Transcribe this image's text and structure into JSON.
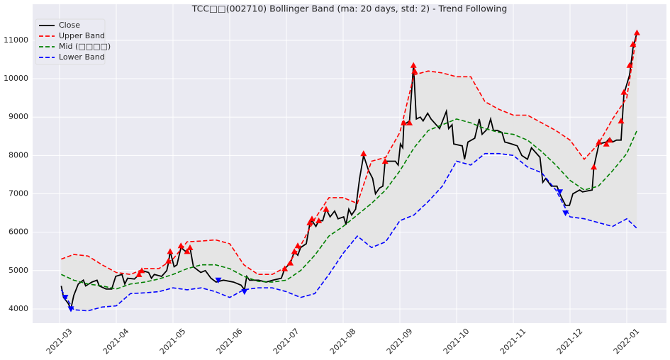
{
  "chart_data": {
    "type": "line",
    "title": "TCC□□(002710) Bollinger Band (ma: 20 days, std: 2) - Trend Following",
    "xlim": [
      -0.475,
      10.7
    ],
    "ylim": [
      3630,
      11940
    ],
    "xticks": [
      {
        "value": 0,
        "label": "2021-03"
      },
      {
        "value": 1,
        "label": "2021-04"
      },
      {
        "value": 2,
        "label": "2021-05"
      },
      {
        "value": 3,
        "label": "2021-06"
      },
      {
        "value": 4,
        "label": "2021-07"
      },
      {
        "value": 5,
        "label": "2021-08"
      },
      {
        "value": 6,
        "label": "2021-09"
      },
      {
        "value": 7,
        "label": "2021-10"
      },
      {
        "value": 8,
        "label": "2021-11"
      },
      {
        "value": 9,
        "label": "2021-12"
      },
      {
        "value": 10,
        "label": "2022-01"
      }
    ],
    "yticks": [
      4000,
      5000,
      6000,
      7000,
      8000,
      9000,
      10000,
      11000
    ],
    "grid": true,
    "legend": "upper left",
    "band_fill": "#e5e5e5",
    "series": [
      {
        "name": "Close",
        "color": "#000000",
        "dash": false,
        "x": [
          0.03,
          0.07,
          0.15,
          0.2,
          0.25,
          0.33,
          0.42,
          0.46,
          0.57,
          0.66,
          0.7,
          0.82,
          0.92,
          0.99,
          1.1,
          1.15,
          1.2,
          1.32,
          1.4,
          1.45,
          1.57,
          1.62,
          1.67,
          1.8,
          1.89,
          1.92,
          1.95,
          2.02,
          2.07,
          2.14,
          2.22,
          2.3,
          2.36,
          2.49,
          2.57,
          2.67,
          2.76,
          2.89,
          3.07,
          3.2,
          3.26,
          3.3,
          3.35,
          3.51,
          3.64,
          3.76,
          3.91,
          3.97,
          4.07,
          4.14,
          4.2,
          4.25,
          4.35,
          4.41,
          4.45,
          4.52,
          4.57,
          4.64,
          4.7,
          4.77,
          4.85,
          4.91,
          5.01,
          5.05,
          5.1,
          5.15,
          5.22,
          5.29,
          5.36,
          5.45,
          5.52,
          5.57,
          5.64,
          5.7,
          5.74,
          5.82,
          5.92,
          5.97,
          6.01,
          6.05,
          6.07,
          6.17,
          6.24,
          6.29,
          6.36,
          6.41,
          6.49,
          6.55,
          6.7,
          6.82,
          6.86,
          6.92,
          6.95,
          7.1,
          7.14,
          7.2,
          7.32,
          7.4,
          7.45,
          7.55,
          7.6,
          7.65,
          7.72,
          7.8,
          7.85,
          7.97,
          8.07,
          8.15,
          8.25,
          8.32,
          8.47,
          8.52,
          8.57,
          8.67,
          8.77,
          8.82,
          8.92,
          8.99,
          9.05,
          9.17,
          9.22,
          9.39,
          9.42,
          9.51,
          9.64,
          9.7,
          9.75,
          9.82,
          9.9,
          9.95,
          10.05,
          10.11,
          10.18
        ],
        "values": [
          4600,
          4300,
          4150,
          4000,
          4350,
          4650,
          4750,
          4600,
          4700,
          4750,
          4600,
          4520,
          4520,
          4850,
          4900,
          4650,
          4800,
          4780,
          4900,
          5000,
          4950,
          4800,
          4900,
          4850,
          5000,
          5200,
          5500,
          5100,
          5150,
          5600,
          5500,
          5600,
          5100,
          4950,
          5000,
          4800,
          4700,
          4750,
          4700,
          4620,
          4500,
          4850,
          4750,
          4750,
          4700,
          4750,
          4800,
          5050,
          5200,
          5500,
          5400,
          5600,
          5700,
          6200,
          6300,
          6150,
          6300,
          6300,
          6600,
          6400,
          6550,
          6350,
          6400,
          6200,
          6600,
          6450,
          6600,
          7400,
          8000,
          7600,
          7400,
          7000,
          7150,
          7200,
          7850,
          7850,
          7850,
          7750,
          8300,
          8200,
          8800,
          8900,
          10350,
          8950,
          9000,
          8900,
          9100,
          8950,
          8700,
          9150,
          8700,
          8800,
          8300,
          8250,
          7900,
          8350,
          8450,
          8950,
          8550,
          8700,
          8950,
          8650,
          8650,
          8600,
          8350,
          8300,
          8250,
          8000,
          7900,
          8200,
          7950,
          7300,
          7400,
          7200,
          7200,
          7000,
          6700,
          6700,
          7000,
          7100,
          7050,
          7100,
          7700,
          8300,
          8350,
          8450,
          8350,
          8400,
          8400,
          9600,
          10100,
          10800,
          11200
        ]
      },
      {
        "name": "Upper Band",
        "color": "#ff0000",
        "dash": true,
        "x": [
          0.03,
          0.25,
          0.5,
          0.75,
          1,
          1.25,
          1.5,
          1.75,
          2,
          2.25,
          2.5,
          2.75,
          3,
          3.25,
          3.5,
          3.75,
          4,
          4.25,
          4.5,
          4.75,
          5,
          5.25,
          5.5,
          5.75,
          6,
          6.25,
          6.5,
          6.75,
          7,
          7.25,
          7.5,
          7.75,
          8,
          8.25,
          8.5,
          8.75,
          9,
          9.25,
          9.5,
          9.75,
          10,
          10.18
        ],
        "values": [
          5300,
          5420,
          5380,
          5150,
          4950,
          4900,
          5050,
          5050,
          5300,
          5750,
          5770,
          5800,
          5700,
          5150,
          4900,
          4900,
          5100,
          5650,
          6350,
          6900,
          6900,
          6750,
          7850,
          7950,
          8600,
          10100,
          10200,
          10150,
          10050,
          10050,
          9400,
          9200,
          9050,
          9050,
          8850,
          8650,
          8400,
          7900,
          8300,
          8950,
          9500,
          11200
        ]
      },
      {
        "name": "Mid (□□□□)",
        "color": "#008000",
        "dash": true,
        "x": [
          0.03,
          0.25,
          0.5,
          0.75,
          1,
          1.25,
          1.5,
          1.75,
          2,
          2.25,
          2.5,
          2.75,
          3,
          3.25,
          3.5,
          3.75,
          4,
          4.25,
          4.5,
          4.75,
          5,
          5.25,
          5.5,
          5.75,
          6,
          6.25,
          6.5,
          6.75,
          7,
          7.25,
          7.5,
          7.75,
          8,
          8.25,
          8.5,
          8.75,
          9,
          9.25,
          9.5,
          9.75,
          10,
          10.18
        ],
        "values": [
          4900,
          4750,
          4650,
          4600,
          4520,
          4650,
          4700,
          4780,
          4900,
          5050,
          5150,
          5150,
          5050,
          4850,
          4720,
          4700,
          4750,
          5000,
          5400,
          5900,
          6150,
          6450,
          6750,
          7100,
          7600,
          8200,
          8650,
          8800,
          8950,
          8850,
          8700,
          8600,
          8550,
          8400,
          8100,
          7750,
          7350,
          7100,
          7200,
          7600,
          8050,
          8650
        ]
      },
      {
        "name": "Lower Band",
        "color": "#0000ff",
        "dash": true,
        "x": [
          0.03,
          0.25,
          0.5,
          0.75,
          1,
          1.25,
          1.5,
          1.75,
          2,
          2.25,
          2.5,
          2.75,
          3,
          3.25,
          3.5,
          3.75,
          4,
          4.25,
          4.5,
          4.75,
          5,
          5.25,
          5.5,
          5.75,
          6,
          6.25,
          6.5,
          6.75,
          7,
          7.25,
          7.5,
          7.75,
          8,
          8.25,
          8.5,
          8.75,
          9,
          9.25,
          9.5,
          9.75,
          10,
          10.18
        ],
        "values": [
          4500,
          3980,
          3950,
          4050,
          4080,
          4400,
          4420,
          4450,
          4550,
          4500,
          4550,
          4450,
          4300,
          4500,
          4550,
          4550,
          4450,
          4300,
          4400,
          4900,
          5450,
          5900,
          5600,
          5750,
          6300,
          6450,
          6800,
          7200,
          7850,
          7750,
          8050,
          8050,
          8000,
          7700,
          7550,
          7100,
          6400,
          6350,
          6250,
          6150,
          6350,
          6100
        ]
      }
    ],
    "signals": [
      {
        "color": "#ff0000",
        "direction": "up",
        "x": [
          1.4,
          1.45,
          1.92,
          1.95,
          2.14,
          2.25,
          2.3,
          3.97,
          4.07,
          4.14,
          4.2,
          4.41,
          4.45,
          4.57,
          4.7,
          5.36,
          5.74,
          6.07,
          6.17,
          6.24,
          6.26,
          9.42,
          9.51,
          9.64,
          9.7,
          9.9,
          9.95,
          10.05,
          10.11,
          10.18
        ],
        "values": [
          4900,
          5000,
          5250,
          5500,
          5650,
          5500,
          5600,
          5050,
          5200,
          5500,
          5650,
          6250,
          6350,
          6300,
          6600,
          8050,
          7850,
          8850,
          8850,
          10350,
          10200,
          7700,
          8350,
          8300,
          8400,
          8900,
          9650,
          10350,
          10900,
          11200
        ]
      },
      {
        "color": "#0000ff",
        "direction": "down",
        "x": [
          0.1,
          0.2,
          2.8,
          3.26,
          8.82,
          8.92
        ],
        "values": [
          4300,
          4000,
          4750,
          4450,
          7050,
          6500
        ]
      }
    ]
  }
}
